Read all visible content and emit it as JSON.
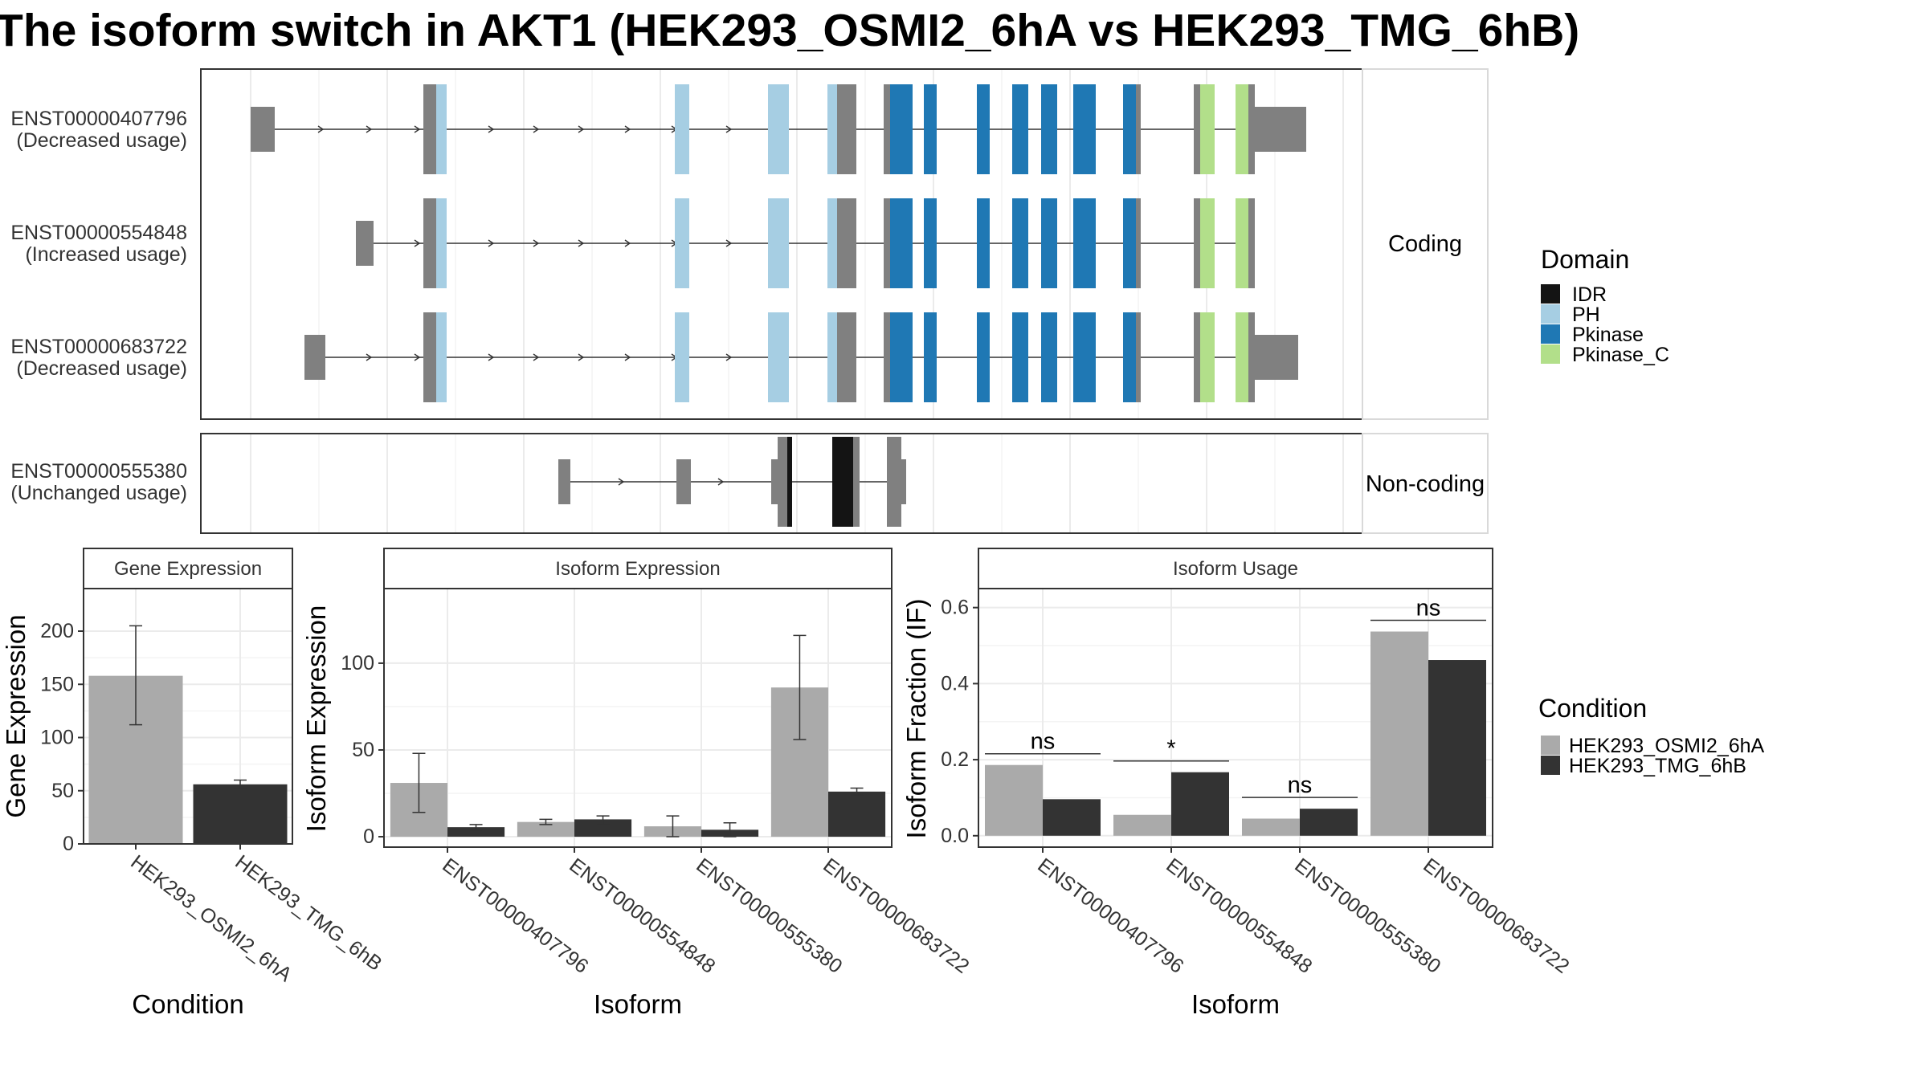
{
  "title": "The isoform switch in AKT1 (HEK293_OSMI2_6hA vs HEK293_TMG_6hB)",
  "colors": {
    "condition_A": "#aaaaaa",
    "condition_B": "#333333",
    "exon": "#808080",
    "IDR": "#141414",
    "PH": "#a6cee3",
    "Pkinase": "#1f78b4",
    "Pkinase_C": "#b2df8a"
  },
  "domain_legend": {
    "title": "Domain",
    "items": [
      {
        "label": "IDR",
        "color": "#141414"
      },
      {
        "label": "PH",
        "color": "#a6cee3"
      },
      {
        "label": "Pkinase",
        "color": "#1f78b4"
      },
      {
        "label": "Pkinase_C",
        "color": "#b2df8a"
      }
    ]
  },
  "condition_legend": {
    "title": "Condition",
    "items": [
      {
        "label": "HEK293_OSMI2_6hA",
        "color": "#aaaaaa"
      },
      {
        "label": "HEK293_TMG_6hB",
        "color": "#333333"
      }
    ]
  },
  "structure": {
    "coding_label": "Coding",
    "noncoding_label": "Non-coding",
    "isoforms": [
      {
        "id": "ENST00000407796",
        "usage": "(Decreased usage)",
        "group": "coding"
      },
      {
        "id": "ENST00000554848",
        "usage": "(Increased usage)",
        "group": "coding"
      },
      {
        "id": "ENST00000683722",
        "usage": "(Decreased usage)",
        "group": "coding"
      },
      {
        "id": "ENST00000555380",
        "usage": "(Unchanged usage)",
        "group": "noncoding"
      }
    ]
  },
  "chart_data": [
    {
      "type": "bar",
      "title": "Gene Expression",
      "xlabel": "Condition",
      "ylabel": "Gene Expression",
      "ylim": [
        0,
        240
      ],
      "yticks": [
        0,
        50,
        100,
        150,
        200
      ],
      "categories": [
        "HEK293_OSMI2_6hA",
        "HEK293_TMG_6hB"
      ],
      "values": [
        158,
        56
      ],
      "err_low": [
        112,
        52
      ],
      "err_high": [
        205,
        60
      ]
    },
    {
      "type": "bar",
      "title": "Isoform Expression",
      "xlabel": "Isoform",
      "ylabel": "Isoform Expression",
      "ylim": [
        -6,
        143
      ],
      "yticks": [
        0,
        50,
        100
      ],
      "categories": [
        "ENST00000407796",
        "ENST00000554848",
        "ENST00000555380",
        "ENST00000683722"
      ],
      "series": [
        {
          "name": "HEK293_OSMI2_6hA",
          "values": [
            31,
            8.5,
            6,
            86
          ],
          "err_low": [
            14,
            7,
            0,
            56
          ],
          "err_high": [
            48,
            10,
            12,
            116
          ]
        },
        {
          "name": "HEK293_TMG_6hB",
          "values": [
            5.5,
            10,
            4,
            26
          ],
          "err_low": [
            4,
            7,
            0,
            24
          ],
          "err_high": [
            7,
            12,
            8,
            28
          ]
        }
      ]
    },
    {
      "type": "bar",
      "title": "Isoform Usage",
      "xlabel": "Isoform",
      "ylabel": "Isoform Fraction (IF)",
      "ylim": [
        -0.03,
        0.65
      ],
      "yticks": [
        "0.0",
        "0.2",
        "0.4",
        "0.6"
      ],
      "categories": [
        "ENST00000407796",
        "ENST00000554848",
        "ENST00000555380",
        "ENST00000683722"
      ],
      "series": [
        {
          "name": "HEK293_OSMI2_6hA",
          "values": [
            0.186,
            0.055,
            0.045,
            0.537
          ]
        },
        {
          "name": "HEK293_TMG_6hB",
          "values": [
            0.096,
            0.167,
            0.071,
            0.462
          ]
        }
      ],
      "significance": [
        "ns",
        "*",
        "ns",
        "ns"
      ]
    }
  ]
}
